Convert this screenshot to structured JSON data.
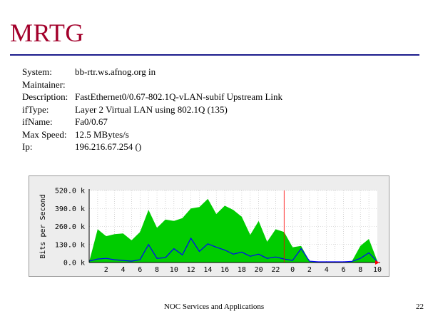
{
  "slide": {
    "title": "MRTG",
    "footer": "NOC Services and Applications",
    "page_number": "22"
  },
  "info": [
    {
      "key": "System:",
      "value": "bb-rtr.ws.afnog.org in"
    },
    {
      "key": "Maintainer:",
      "value": ""
    },
    {
      "key": "Description:",
      "value": "FastEthernet0/0.67-802.1Q-vLAN-subif Upstream Link"
    },
    {
      "key": "ifType:",
      "value": "Layer 2 Virtual LAN using 802.1Q (135)"
    },
    {
      "key": "ifName:",
      "value": "Fa0/0.67"
    },
    {
      "key": "Max Speed:",
      "value": "12.5 MBytes/s"
    },
    {
      "key": "Ip:",
      "value": "196.216.67.254 ()"
    }
  ],
  "colors": {
    "title": "#a3002b",
    "rule": "#1c1c8c",
    "in_fill": "#00cc00",
    "out_line": "#0000ff",
    "now_marker": "#ff0000"
  },
  "chart_data": {
    "type": "area",
    "ylabel": "Bits per Second",
    "ylim": [
      0,
      520
    ],
    "y_unit": "k",
    "yticks": [
      0,
      130,
      260,
      390,
      520
    ],
    "ytick_labels": [
      "0.0 k",
      "130.0 k",
      "260.0 k",
      "390.0 k",
      "520.0 k"
    ],
    "x_hours": 34,
    "xtick_labels": [
      "2",
      "4",
      "6",
      "8",
      "10",
      "12",
      "14",
      "16",
      "18",
      "20",
      "22",
      "0",
      "2",
      "4",
      "6",
      "8",
      "10"
    ],
    "xtick_hours": [
      2,
      4,
      6,
      8,
      10,
      12,
      14,
      16,
      18,
      20,
      22,
      24,
      26,
      28,
      30,
      32,
      34
    ],
    "day_boundary_hour": 23,
    "grid": true,
    "series": [
      {
        "kind": "fill",
        "x": [
          0,
          1,
          2,
          3,
          4,
          5,
          6,
          7,
          8,
          9,
          10,
          11,
          12,
          13,
          14,
          15,
          16,
          17,
          18,
          19,
          20,
          21,
          22,
          23,
          24,
          25,
          26,
          27,
          28,
          29,
          30,
          31,
          32,
          33,
          34
        ],
        "values": [
          5,
          240,
          190,
          205,
          210,
          160,
          220,
          380,
          250,
          310,
          300,
          320,
          390,
          400,
          460,
          350,
          410,
          380,
          330,
          200,
          300,
          150,
          240,
          220,
          110,
          120,
          10,
          5,
          5,
          5,
          5,
          10,
          120,
          170,
          10
        ]
      },
      {
        "kind": "line",
        "x": [
          0,
          1,
          2,
          3,
          4,
          5,
          6,
          7,
          8,
          9,
          10,
          11,
          12,
          13,
          14,
          15,
          16,
          17,
          18,
          19,
          20,
          21,
          22,
          23,
          24,
          25,
          26,
          27,
          28,
          29,
          30,
          31,
          32,
          33,
          34
        ],
        "values": [
          10,
          25,
          30,
          20,
          15,
          10,
          20,
          130,
          30,
          35,
          100,
          55,
          175,
          80,
          135,
          110,
          90,
          60,
          75,
          45,
          60,
          30,
          40,
          25,
          15,
          100,
          10,
          5,
          5,
          5,
          5,
          8,
          30,
          70,
          5
        ]
      }
    ]
  }
}
